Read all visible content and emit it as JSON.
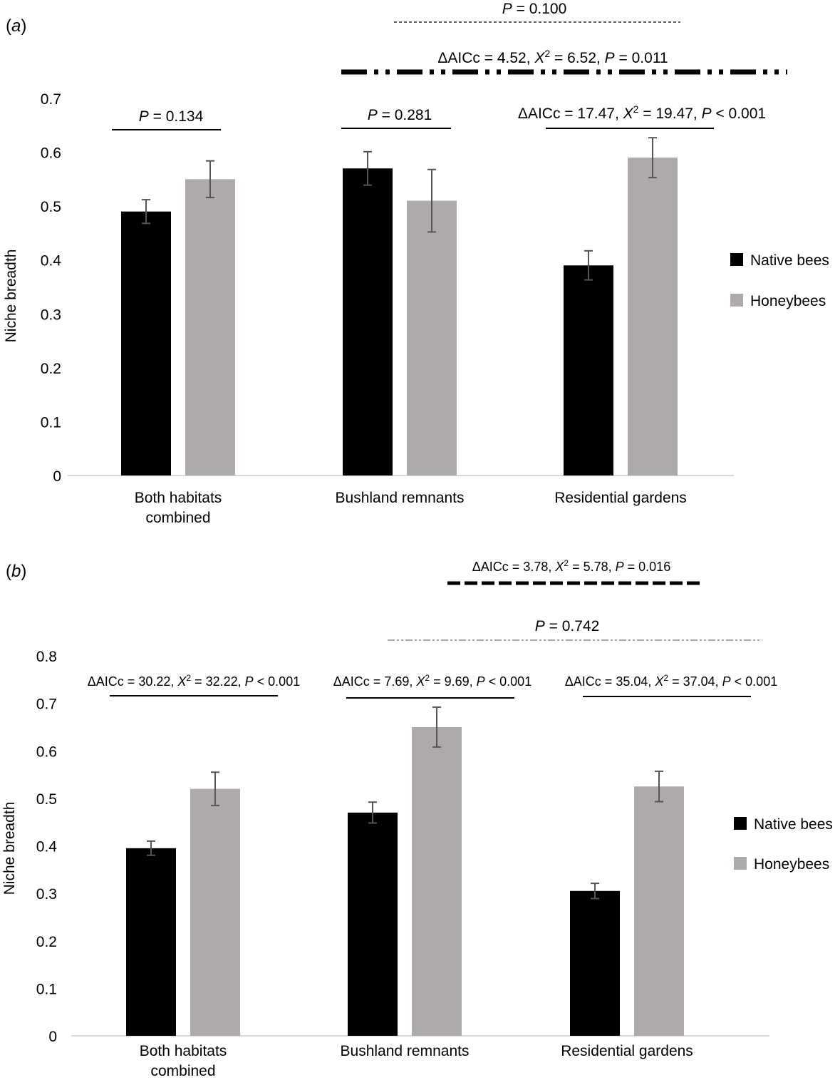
{
  "colors": {
    "native": "#000000",
    "honey": "#aeaaaa",
    "error": "#555555",
    "axis": "#d9d9d9"
  },
  "chart_data": [
    {
      "type": "bar",
      "panel_label": "a",
      "ylabel": "Niche breadth",
      "ylim": [
        0,
        0.7
      ],
      "yticks": [
        "0",
        "0.1",
        "0.2",
        "0.3",
        "0.4",
        "0.5",
        "0.6",
        "0.7"
      ],
      "categories": [
        {
          "lines": [
            "Both habitats",
            "combined"
          ]
        },
        {
          "lines": [
            "Bushland remnants"
          ]
        },
        {
          "lines": [
            "Residential gardens"
          ]
        }
      ],
      "series": [
        {
          "name": "Native bees",
          "values": [
            0.49,
            0.57,
            0.39
          ],
          "errors": [
            0.022,
            0.031,
            0.027
          ]
        },
        {
          "name": "Honeybees",
          "values": [
            0.55,
            0.51,
            0.59
          ],
          "errors": [
            0.034,
            0.058,
            0.037
          ]
        }
      ],
      "legend": [
        "Native bees",
        "Honeybees"
      ],
      "annotations": [
        {
          "parts": [
            {
              "t": "P",
              "i": true
            },
            {
              "t": " = 0.134"
            }
          ],
          "spans": "category 1 pair",
          "style": "solid"
        },
        {
          "parts": [
            {
              "t": "P",
              "i": true
            },
            {
              "t": " = 0.281"
            }
          ],
          "spans": "category 2 pair",
          "style": "solid"
        },
        {
          "parts": [
            {
              "t": "ΔAICc = 17.47, "
            },
            {
              "t": "X",
              "i": true
            },
            {
              "t": "2",
              "sup": true
            },
            {
              "t": "  = 19.47, "
            },
            {
              "t": "P",
              "i": true
            },
            {
              "t": " < 0.001"
            }
          ],
          "spans": "category 3 pair",
          "style": "solid"
        },
        {
          "parts": [
            {
              "t": "ΔAICc = 4.52, "
            },
            {
              "t": "X",
              "i": true
            },
            {
              "t": "2",
              "sup": true
            },
            {
              "t": " = 6.52, "
            },
            {
              "t": "P",
              "i": true
            },
            {
              "t": " = 0.011"
            }
          ],
          "spans": "native bees: bushland vs gardens",
          "style": "dash-dot-dot"
        },
        {
          "parts": [
            {
              "t": "P",
              "i": true
            },
            {
              "t": " = 0.100"
            }
          ],
          "spans": "honeybees: bushland vs gardens",
          "style": "thin dashed"
        }
      ]
    },
    {
      "type": "bar",
      "panel_label": "b",
      "ylabel": "Niche breadth",
      "ylim": [
        0,
        0.8
      ],
      "yticks": [
        "0",
        "0.1",
        "0.2",
        "0.3",
        "0.4",
        "0.5",
        "0.6",
        "0.7",
        "0.8"
      ],
      "categories": [
        {
          "lines": [
            "Both habitats",
            "combined"
          ]
        },
        {
          "lines": [
            "Bushland remnants"
          ]
        },
        {
          "lines": [
            "Residential gardens"
          ]
        }
      ],
      "series": [
        {
          "name": "Native bees",
          "values": [
            0.395,
            0.47,
            0.305
          ],
          "errors": [
            0.015,
            0.022,
            0.016
          ]
        },
        {
          "name": "Honeybees",
          "values": [
            0.52,
            0.65,
            0.525
          ],
          "errors": [
            0.035,
            0.042,
            0.032
          ]
        }
      ],
      "legend": [
        "Native bees",
        "Honeybees"
      ],
      "annotations": [
        {
          "parts": [
            {
              "t": "ΔAICc = 30.22, "
            },
            {
              "t": "X",
              "i": true
            },
            {
              "t": "2",
              "sup": true
            },
            {
              "t": " = 32.22, "
            },
            {
              "t": "P",
              "i": true
            },
            {
              "t": " < 0.001"
            }
          ],
          "spans": "category 1 pair",
          "style": "solid"
        },
        {
          "parts": [
            {
              "t": "ΔAICc = 7.69, "
            },
            {
              "t": "X",
              "i": true
            },
            {
              "t": "2",
              "sup": true
            },
            {
              "t": " = 9.69, "
            },
            {
              "t": "P",
              "i": true
            },
            {
              "t": " < 0.001"
            }
          ],
          "spans": "category 2 pair",
          "style": "solid"
        },
        {
          "parts": [
            {
              "t": "ΔAICc = 35.04, "
            },
            {
              "t": "X",
              "i": true
            },
            {
              "t": "2",
              "sup": true
            },
            {
              "t": " = 37.04, "
            },
            {
              "t": "P",
              "i": true
            },
            {
              "t": " < 0.001"
            }
          ],
          "spans": "category 3 pair",
          "style": "solid"
        },
        {
          "parts": [
            {
              "t": "P",
              "i": true
            },
            {
              "t": " = 0.742"
            }
          ],
          "spans": "honeybees: bushland vs gardens",
          "style": "dash-dot-dot"
        },
        {
          "parts": [
            {
              "t": "ΔAICc = 3.78, "
            },
            {
              "t": "X",
              "i": true
            },
            {
              "t": "2",
              "sup": true
            },
            {
              "t": " = 5.78, "
            },
            {
              "t": "P",
              "i": true
            },
            {
              "t": " = 0.016"
            }
          ],
          "spans": "native bees: bushland vs gardens",
          "style": "thick dashed"
        }
      ]
    }
  ]
}
